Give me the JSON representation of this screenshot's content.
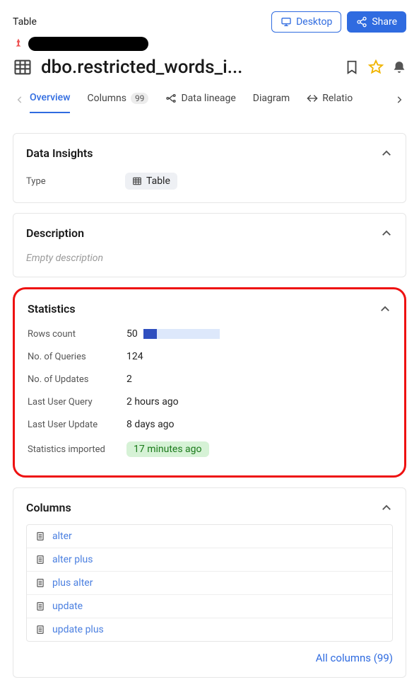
{
  "header": {
    "type_label": "Table",
    "desktop_label": "Desktop",
    "share_label": "Share"
  },
  "title": {
    "text": "dbo.restricted_words_i..."
  },
  "tabs": {
    "overview": "Overview",
    "columns": "Columns",
    "columns_count": "99",
    "data_lineage": "Data lineage",
    "diagram": "Diagram",
    "relations": "Relatio"
  },
  "insights": {
    "title": "Data Insights",
    "type_label": "Type",
    "type_value": "Table"
  },
  "description": {
    "title": "Description",
    "empty": "Empty description"
  },
  "statistics": {
    "title": "Statistics",
    "highlight_color": "#e11",
    "rows": [
      {
        "label": "Rows count",
        "value": "50",
        "bar": {
          "pct": 18,
          "fill": "#2f4fbf",
          "track": "#dde8fb"
        }
      },
      {
        "label": "No. of Queries",
        "value": "124"
      },
      {
        "label": "No. of Updates",
        "value": "2"
      },
      {
        "label": "Last User Query",
        "value": "2 hours ago"
      },
      {
        "label": "Last User Update",
        "value": "8 days ago"
      },
      {
        "label": "Statistics imported",
        "value": "17 minutes ago",
        "pill": true
      }
    ]
  },
  "columns": {
    "title": "Columns",
    "items": [
      "alter",
      "alter plus",
      "plus alter",
      "update",
      "update plus"
    ],
    "all_label": "All columns (99)"
  },
  "colors": {
    "accent": "#2f6be0",
    "border": "#e6e6e6",
    "text": "#1a1a1a",
    "muted": "#555",
    "green_bg": "#d6f2d6",
    "green_fg": "#1a7a1a"
  }
}
